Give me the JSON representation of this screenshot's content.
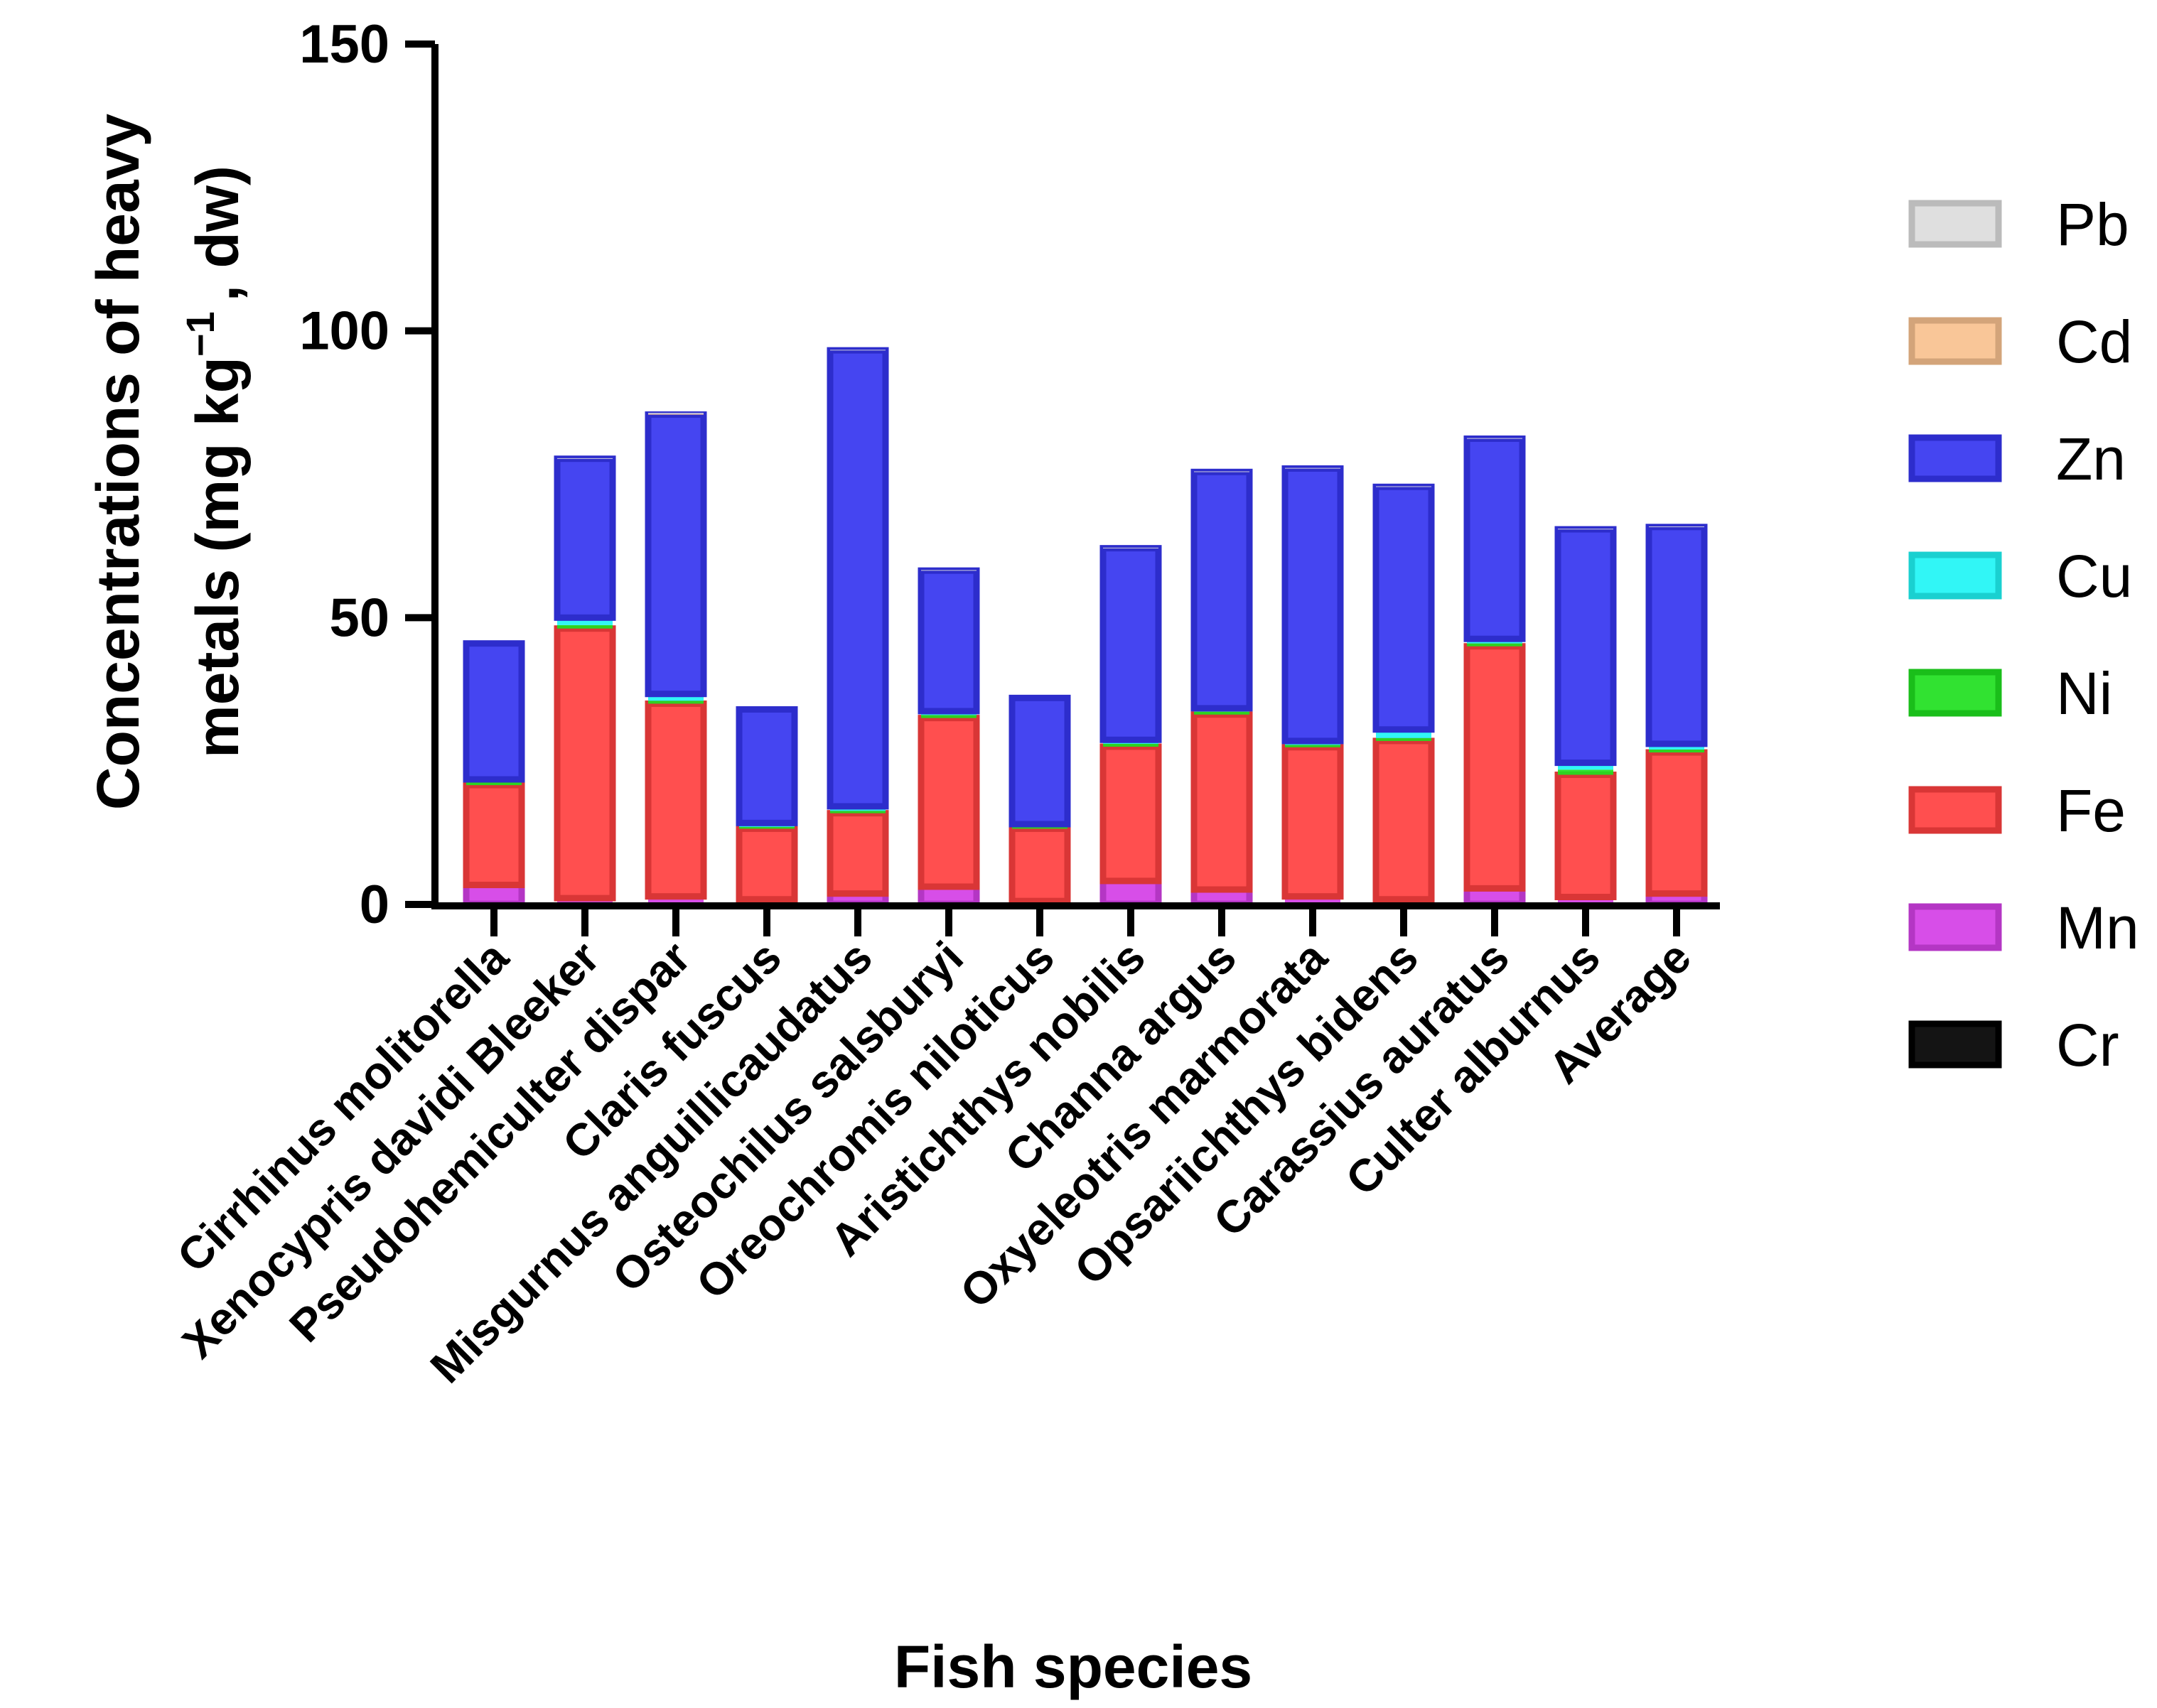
{
  "chart_data": {
    "type": "bar",
    "stacked": true,
    "title": "",
    "xlabel": "Fish species",
    "ylabel_line1": "Concentrations of heavy",
    "ylabel_line2_pre": "metals (mg kg",
    "ylabel_line2_sup": "−1",
    "ylabel_line2_post": ", dw)",
    "ylim": [
      0,
      150
    ],
    "yticks": [
      0,
      50,
      100,
      150
    ],
    "grid": false,
    "legend_position": "right",
    "categories": [
      "Cirrhinus molitorella",
      "Xenocypris davidi Bleeker",
      "Pseudohemiculter dispar",
      "Claris fuscus",
      "Misgurnus anguillicaudatus",
      "Osteochilus salsburyi",
      "Oreochromis niloticus",
      "Aristichthys nobilis",
      "Channa argus",
      "Oxyeleotris marmorata",
      "Opsariichthys bidens",
      "Carassius auratus",
      "Culter alburnus",
      "Average"
    ],
    "series": [
      {
        "name": "Cr",
        "color": "#000000",
        "values": [
          0.1,
          0.1,
          0.1,
          0.1,
          0.1,
          0.1,
          0.1,
          0.1,
          0.1,
          0.1,
          0.1,
          0.1,
          0.1,
          0.1
        ]
      },
      {
        "name": "Mn",
        "color": "#d43fe6",
        "values": [
          3.3,
          1.0,
          1.3,
          0.8,
          1.8,
          3.0,
          0.5,
          4.0,
          2.5,
          1.3,
          0.8,
          2.7,
          1.2,
          1.8
        ]
      },
      {
        "name": "Fe",
        "color": "#ff4040",
        "values": [
          17.4,
          47.0,
          33.6,
          12.3,
          14.0,
          29.4,
          12.6,
          23.4,
          30.5,
          26.0,
          27.6,
          42.2,
          21.3,
          24.6
        ]
      },
      {
        "name": "Ni",
        "color": "#1fe01f",
        "values": [
          0.5,
          0.6,
          0.5,
          0.3,
          0.4,
          0.5,
          0.3,
          0.5,
          0.5,
          0.4,
          0.5,
          0.5,
          0.9,
          0.5
        ]
      },
      {
        "name": "Cu",
        "color": "#1ff5f5",
        "values": [
          0.5,
          1.3,
          1.2,
          0.7,
          0.8,
          0.7,
          0.5,
          0.7,
          0.6,
          0.7,
          1.5,
          0.8,
          1.2,
          1.0
        ]
      },
      {
        "name": "Zn",
        "color": "#3535f0",
        "values": [
          23.7,
          27.7,
          48.7,
          19.8,
          79.5,
          24.5,
          22.0,
          33.4,
          41.2,
          47.5,
          42.3,
          34.9,
          40.7,
          37.8
        ]
      },
      {
        "name": "Cd",
        "color": "#f8c18f",
        "values": [
          0.0,
          0.0,
          0.1,
          0.0,
          0.0,
          0.0,
          0.0,
          0.0,
          0.0,
          0.0,
          0.0,
          0.0,
          0.0,
          0.0
        ]
      },
      {
        "name": "Pb",
        "color": "#dcdcdc",
        "values": [
          0.0,
          0.1,
          0.2,
          0.0,
          0.1,
          0.1,
          0.0,
          0.1,
          0.1,
          0.1,
          0.1,
          0.1,
          0.1,
          0.1
        ]
      }
    ],
    "legend_order": [
      "Pb",
      "Cd",
      "Zn",
      "Cu",
      "Ni",
      "Fe",
      "Mn",
      "Cr"
    ]
  }
}
